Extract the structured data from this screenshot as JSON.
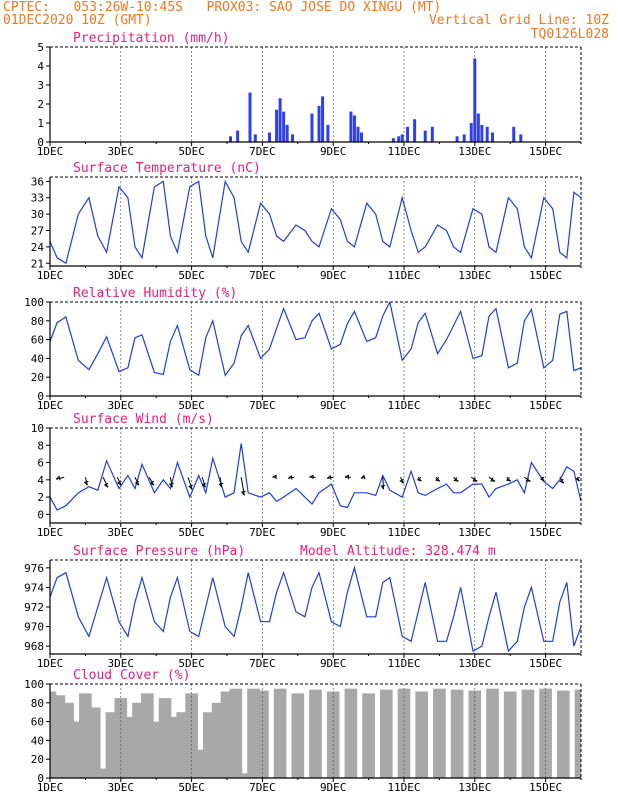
{
  "header": {
    "line1": "CPTEC:   053:26W-10:45S   PROX03: SAO JOSE DO XINGU (MT)",
    "line2_left": "01DEC2020 10Z (GMT)",
    "line2_right": "Vertical Grid Line: 10Z",
    "line3_right": "TQ0126L028",
    "color": "#f07820"
  },
  "colors": {
    "title": "#e8207a",
    "line": "#1f3fd8",
    "bar": "#2f3ff0",
    "cloud": "#a8a8a8",
    "axis": "#000000",
    "grid": "#444444"
  },
  "x_ticks": [
    "1DEC",
    "3DEC",
    "5DEC",
    "7DEC",
    "9DEC",
    "11DEC",
    "13DEC",
    "15DEC"
  ],
  "chart_data": [
    {
      "type": "bar",
      "title": "Precipitation (mm/h)",
      "ylim": [
        0,
        5
      ],
      "yticks": [
        0,
        1,
        2,
        3,
        4,
        5
      ],
      "x_range_days": [
        1,
        16
      ],
      "x": [
        6.1,
        6.3,
        6.65,
        6.8,
        7.2,
        7.4,
        7.5,
        7.6,
        7.7,
        7.85,
        8.4,
        8.6,
        8.7,
        8.85,
        9.5,
        9.6,
        9.7,
        9.8,
        10.7,
        10.85,
        10.95,
        11.1,
        11.3,
        11.6,
        11.8,
        12.5,
        12.7,
        12.9,
        13.0,
        13.1,
        13.2,
        13.35,
        13.5,
        14.1,
        14.3
      ],
      "values": [
        0.3,
        0.6,
        2.6,
        0.4,
        0.5,
        1.7,
        2.3,
        1.6,
        0.9,
        0.4,
        1.5,
        1.9,
        2.4,
        0.9,
        1.6,
        1.4,
        0.8,
        0.5,
        0.2,
        0.3,
        0.4,
        0.8,
        1.2,
        0.6,
        0.8,
        0.3,
        0.4,
        1.0,
        4.4,
        1.5,
        0.9,
        0.8,
        0.5,
        0.8,
        0.4
      ]
    },
    {
      "type": "line",
      "title": "Surface Temperature (nC)",
      "ylim": [
        20.5,
        36.8
      ],
      "yticks": [
        21,
        24,
        27,
        30,
        33,
        36
      ],
      "x": [
        1.0,
        1.2,
        1.45,
        1.8,
        2.1,
        2.35,
        2.6,
        2.95,
        3.2,
        3.4,
        3.6,
        3.95,
        4.2,
        4.4,
        4.6,
        4.95,
        5.2,
        5.4,
        5.6,
        5.95,
        6.2,
        6.4,
        6.6,
        6.95,
        7.2,
        7.4,
        7.6,
        7.95,
        8.2,
        8.4,
        8.6,
        8.95,
        9.2,
        9.4,
        9.6,
        9.95,
        10.2,
        10.4,
        10.6,
        10.95,
        11.2,
        11.4,
        11.6,
        11.95,
        12.2,
        12.4,
        12.6,
        12.95,
        13.2,
        13.4,
        13.6,
        13.95,
        14.2,
        14.4,
        14.6,
        14.95,
        15.2,
        15.4,
        15.6,
        15.8,
        16.0
      ],
      "values": [
        25,
        22,
        21,
        30,
        33,
        26,
        23,
        35,
        33,
        24,
        22,
        35,
        36,
        26,
        23,
        35,
        36,
        26,
        22,
        36,
        33,
        25,
        23,
        32,
        30,
        26,
        25,
        28,
        27,
        25,
        24,
        31,
        29,
        25,
        24,
        32,
        30,
        25,
        24,
        33,
        27,
        23,
        24,
        28,
        27,
        24,
        23,
        31,
        30,
        24,
        23,
        33,
        31,
        24,
        22,
        33,
        31,
        23,
        22,
        34,
        33
      ]
    },
    {
      "type": "line",
      "title": "Relative Humidity (%)",
      "ylim": [
        0,
        100
      ],
      "yticks": [
        0,
        20,
        40,
        60,
        80,
        100
      ],
      "x": [
        1.0,
        1.2,
        1.45,
        1.8,
        2.1,
        2.35,
        2.6,
        2.95,
        3.2,
        3.4,
        3.6,
        3.95,
        4.2,
        4.4,
        4.6,
        4.95,
        5.2,
        5.4,
        5.6,
        5.95,
        6.2,
        6.4,
        6.6,
        6.95,
        7.2,
        7.4,
        7.6,
        7.95,
        8.2,
        8.4,
        8.6,
        8.95,
        9.2,
        9.4,
        9.6,
        9.95,
        10.2,
        10.4,
        10.6,
        10.95,
        11.2,
        11.4,
        11.6,
        11.95,
        12.2,
        12.4,
        12.6,
        12.95,
        13.2,
        13.4,
        13.6,
        13.95,
        14.2,
        14.4,
        14.6,
        14.95,
        15.2,
        15.4,
        15.6,
        15.8,
        16.0
      ],
      "values": [
        58,
        78,
        84,
        38,
        28,
        45,
        63,
        26,
        30,
        62,
        65,
        25,
        23,
        58,
        75,
        28,
        22,
        62,
        80,
        22,
        35,
        64,
        75,
        40,
        50,
        72,
        93,
        60,
        62,
        80,
        88,
        50,
        55,
        77,
        90,
        58,
        62,
        85,
        100,
        38,
        50,
        78,
        88,
        45,
        60,
        75,
        90,
        40,
        43,
        85,
        93,
        30,
        35,
        80,
        92,
        30,
        38,
        87,
        90,
        27,
        30
      ]
    },
    {
      "type": "line",
      "title": "Surface Wind (m/s)",
      "ylim": [
        -1,
        10
      ],
      "yticks": [
        0,
        2,
        4,
        6,
        8,
        10
      ],
      "x": [
        1.0,
        1.2,
        1.45,
        1.8,
        2.1,
        2.35,
        2.6,
        2.95,
        3.2,
        3.4,
        3.6,
        3.95,
        4.2,
        4.4,
        4.6,
        4.95,
        5.2,
        5.4,
        5.6,
        5.95,
        6.2,
        6.4,
        6.6,
        6.95,
        7.2,
        7.4,
        7.6,
        7.95,
        8.2,
        8.4,
        8.6,
        8.95,
        9.2,
        9.4,
        9.6,
        9.95,
        10.2,
        10.4,
        10.6,
        10.95,
        11.2,
        11.4,
        11.6,
        11.95,
        12.2,
        12.4,
        12.6,
        12.95,
        13.2,
        13.4,
        13.6,
        13.95,
        14.2,
        14.4,
        14.6,
        14.95,
        15.2,
        15.4,
        15.6,
        15.8,
        16.0
      ],
      "values": [
        2.0,
        0.5,
        1.0,
        2.5,
        3.2,
        2.8,
        6.2,
        3.0,
        4.5,
        3.0,
        5.8,
        2.5,
        4.0,
        3.0,
        6.0,
        2.0,
        4.5,
        2.5,
        6.5,
        2.0,
        2.5,
        8.2,
        2.5,
        2.0,
        2.5,
        1.5,
        2.0,
        3.0,
        2.0,
        1.2,
        2.5,
        3.5,
        1.0,
        0.8,
        2.5,
        2.5,
        2.2,
        4.5,
        2.8,
        2.0,
        5.0,
        2.5,
        2.2,
        3.0,
        3.5,
        2.5,
        2.5,
        3.5,
        3.5,
        2.0,
        3.0,
        3.5,
        4.0,
        2.5,
        6.0,
        3.8,
        3.0,
        4.0,
        5.5,
        5.0,
        1.5
      ],
      "arrows": {
        "x": [
          1.4,
          2.0,
          2.5,
          2.9,
          3.4,
          3.8,
          4.4,
          4.9,
          5.3,
          5.8,
          6.4,
          7.4,
          7.9,
          8.5,
          9.0,
          9.5,
          9.9,
          10.4,
          10.9,
          11.4,
          11.9,
          12.4,
          12.9,
          13.4,
          13.9,
          14.4,
          14.9,
          15.4,
          15.9
        ],
        "u": [
          -2.0,
          0.5,
          1.2,
          1.0,
          1.0,
          1.2,
          0.5,
          1.0,
          0.8,
          0.5,
          0.8,
          -1.0,
          -1.5,
          -1.5,
          -1.5,
          -1.5,
          -1.0,
          0.2,
          0.8,
          0.8,
          1.0,
          1.2,
          1.5,
          1.5,
          1.0,
          1.5,
          0.5,
          1.0,
          0.5
        ],
        "v": [
          0.5,
          2.0,
          2.5,
          2.0,
          2.0,
          2.0,
          2.5,
          3.0,
          2.5,
          2.5,
          4.5,
          0.0,
          0.3,
          0.0,
          0.3,
          0.0,
          0.3,
          3.0,
          1.5,
          1.0,
          1.0,
          1.0,
          1.0,
          1.0,
          1.0,
          1.0,
          1.0,
          1.5,
          1.0
        ]
      }
    },
    {
      "type": "line",
      "title": "Surface Pressure (hPa)",
      "subtitle": "Model Altitude: 328.474  m",
      "ylim": [
        967.2,
        976.8
      ],
      "yticks": [
        968,
        970,
        972,
        974,
        976
      ],
      "x": [
        1.0,
        1.2,
        1.45,
        1.8,
        2.1,
        2.35,
        2.6,
        2.95,
        3.2,
        3.4,
        3.6,
        3.95,
        4.2,
        4.4,
        4.6,
        4.95,
        5.2,
        5.4,
        5.6,
        5.95,
        6.2,
        6.4,
        6.6,
        6.95,
        7.2,
        7.4,
        7.6,
        7.95,
        8.2,
        8.4,
        8.6,
        8.95,
        9.2,
        9.4,
        9.6,
        9.95,
        10.2,
        10.4,
        10.6,
        10.95,
        11.2,
        11.4,
        11.6,
        11.95,
        12.2,
        12.4,
        12.6,
        12.95,
        13.2,
        13.4,
        13.6,
        13.95,
        14.2,
        14.4,
        14.6,
        14.95,
        15.2,
        15.4,
        15.6,
        15.8,
        16.0
      ],
      "values": [
        973,
        975,
        975.5,
        971,
        969,
        972,
        975,
        970.5,
        969,
        972.5,
        975,
        970.5,
        969.5,
        973,
        975,
        969.5,
        969,
        972,
        975,
        970,
        969,
        972,
        975.5,
        970.5,
        970.5,
        973.5,
        975.5,
        971.5,
        971,
        974,
        975.5,
        970.5,
        970,
        973.5,
        976,
        971,
        971,
        974.5,
        975,
        969,
        968.5,
        971.5,
        974.5,
        968.5,
        968.5,
        971,
        974,
        967.5,
        968,
        971,
        973.5,
        967.5,
        968.5,
        972,
        974,
        968.5,
        968.5,
        972.5,
        974.5,
        968,
        970
      ]
    },
    {
      "type": "bar",
      "title": "Cloud Cover (%)",
      "ylim": [
        0,
        100
      ],
      "yticks": [
        0,
        20,
        40,
        60,
        80,
        100
      ],
      "x": [
        1.0,
        1.25,
        1.5,
        1.75,
        2.0,
        2.25,
        2.5,
        2.75,
        3.0,
        3.25,
        3.5,
        3.75,
        4.0,
        4.25,
        4.5,
        4.75,
        5.0,
        5.25,
        5.5,
        5.75,
        6.0,
        6.25,
        6.5,
        6.75,
        7.0,
        7.5,
        8.0,
        8.5,
        9.0,
        9.5,
        10.0,
        10.5,
        11.0,
        11.5,
        12.0,
        12.5,
        13.0,
        13.5,
        14.0,
        14.5,
        15.0,
        15.5,
        16.0
      ],
      "values": [
        92,
        88,
        80,
        60,
        90,
        75,
        10,
        70,
        85,
        65,
        80,
        90,
        60,
        85,
        65,
        70,
        90,
        30,
        70,
        80,
        92,
        95,
        5,
        95,
        93,
        95,
        90,
        94,
        92,
        95,
        90,
        94,
        95,
        92,
        95,
        94,
        93,
        95,
        92,
        94,
        95,
        93,
        94
      ]
    }
  ]
}
